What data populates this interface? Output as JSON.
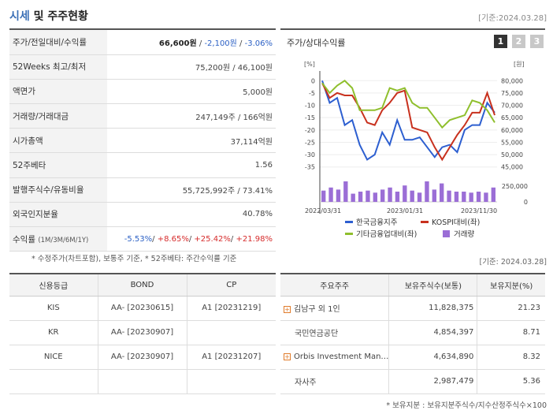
{
  "header": {
    "title_main": "시세",
    "title_rest": " 및 주주현황",
    "date": "[기준:2024.03.28]"
  },
  "price_table": [
    {
      "label": "주가/전일대비/수익률",
      "v1": "66,600원",
      "sep1": " / ",
      "v2": "-2,100원",
      "sep2": " / ",
      "v3": "-3.06%"
    },
    {
      "label": "52Weeks 최고/최저",
      "value": "75,200원 / 46,100원"
    },
    {
      "label": "액면가",
      "value": "5,000원"
    },
    {
      "label": "거래량/거래대금",
      "value": "247,149주 / 166억원"
    },
    {
      "label": "시가총액",
      "value": "37,114억원"
    },
    {
      "label": "52주베타",
      "value": "1.56"
    },
    {
      "label": "발행주식수/유동비율",
      "value": "55,725,992주 / 73.41%"
    },
    {
      "label": "외국인지분율",
      "value": "40.78%"
    }
  ],
  "returns": {
    "label": "수익률",
    "label_small": "(1M/3M/6M/1Y)",
    "r1": "-5.53%",
    "r2": "+8.65%",
    "r3": "+25.42%",
    "r4": "+21.98%",
    "sep": "/ "
  },
  "footnote1": "* 수정주가(차트포함), 보통주 기준, * 52주베타: 주간수익률 기준",
  "footnote1_date": "[기준: 2024.03.28]",
  "chart_panel": {
    "title": "주가/상대수익률",
    "buttons": [
      "1",
      "2",
      "3"
    ]
  },
  "chart_data": {
    "type": "line",
    "left_axis_unit": "[%]",
    "right_axis_unit": "[원]",
    "left_ticks": [
      0,
      -5,
      -10,
      -15,
      -20,
      -25,
      -30,
      -35
    ],
    "right_ticks": [
      "80,000",
      "75,000",
      "70,000",
      "65,000",
      "60,000",
      "55,000",
      "50,000",
      "45,000"
    ],
    "volume_ticks": [
      "250,000",
      "0"
    ],
    "x_labels": [
      "2022/03/31",
      "2023/01/31",
      "2023/11/30"
    ],
    "ylim_left": [
      -37,
      2
    ],
    "series": [
      {
        "name": "한국금융지주",
        "color": "#2d5fd0",
        "values": [
          0,
          -9,
          -7,
          -18,
          -16,
          -26,
          -32,
          -30,
          -21,
          -26,
          -16,
          -24,
          -24,
          -23,
          -27,
          -31,
          -27,
          -26,
          -29,
          -20,
          -18,
          -18,
          -9,
          -13
        ]
      },
      {
        "name": "KOSPI대비(좌)",
        "color": "#c8311e",
        "values": [
          -1,
          -7,
          -5,
          -6,
          -6,
          -11,
          -17,
          -18,
          -12,
          -9,
          -5,
          -4,
          -19,
          -20,
          -21,
          -27,
          -32,
          -27,
          -22,
          -18,
          -13,
          -13,
          -5,
          -14
        ]
      },
      {
        "name": "기타금융업대비(좌)",
        "color": "#8fbf2d",
        "values": [
          -1,
          -5,
          -2,
          0,
          -3,
          -12,
          -12,
          -12,
          -11,
          -3,
          -4,
          -3,
          -9,
          -11,
          -11,
          -15,
          -19,
          -16,
          -15,
          -14,
          -8,
          -9,
          -12,
          -17
        ]
      }
    ],
    "volume": {
      "name": "거래량",
      "color": "#9b6ed6",
      "values": [
        0.55,
        0.7,
        0.6,
        1.0,
        0.4,
        0.5,
        0.55,
        0.45,
        0.6,
        0.7,
        0.5,
        0.8,
        0.55,
        0.45,
        1.0,
        0.6,
        0.9,
        0.55,
        0.5,
        0.5,
        0.45,
        0.5,
        0.45,
        0.7
      ]
    }
  },
  "credit": {
    "headers": [
      "신용등급",
      "BOND",
      "CP"
    ],
    "rows": [
      [
        "KIS",
        "AA-  [20230615]",
        "A1  [20231219]"
      ],
      [
        "KR",
        "AA-  [20230907]",
        ""
      ],
      [
        "NICE",
        "AA-  [20230907]",
        "A1  [20231207]"
      ],
      [
        "",
        "",
        ""
      ]
    ]
  },
  "holders": {
    "headers": [
      "주요주주",
      "보유주식수(보통)",
      "보유지분(%)"
    ],
    "rows": [
      {
        "name": "김남구 외 1인",
        "shares": "11,828,375",
        "pct": "21.23",
        "expand": true
      },
      {
        "name": "국민연금공단",
        "shares": "4,854,397",
        "pct": "8.71",
        "expand": false
      },
      {
        "name": "Orbis Investment Man…",
        "shares": "4,634,890",
        "pct": "8.32",
        "expand": true
      },
      {
        "name": "자사주",
        "shares": "2,987,479",
        "pct": "5.36",
        "expand": false
      }
    ]
  },
  "footnote2": "* 보유지분 : 보유지분주식수/지수산정주식수×100"
}
